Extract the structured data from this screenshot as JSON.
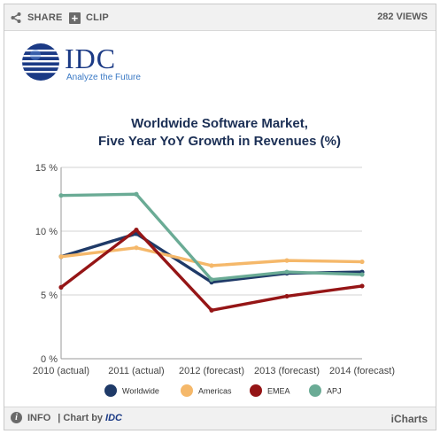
{
  "toolbar": {
    "share_label": "SHARE",
    "clip_label": "CLIP",
    "views_count": "282",
    "views_label": "VIEWS"
  },
  "logo": {
    "name": "IDC",
    "tagline": "Analyze the Future"
  },
  "footer": {
    "info_label": "INFO",
    "chart_by_label": "| Chart by",
    "chart_by_brand": "IDC",
    "brand": "iCharts"
  },
  "colors": {
    "Worldwide": "#1f3a68",
    "Americas": "#f5b86a",
    "EMEA": "#951516",
    "APJ": "#6aab95"
  },
  "chart_data": {
    "type": "line",
    "title": "Worldwide Software Market,",
    "subtitle": "Five Year YoY Growth in Revenues  (%)",
    "xlabel": "",
    "ylabel": "",
    "categories": [
      "2010 (actual)",
      "2011 (actual)",
      "2012 (forecast)",
      "2013 (forecast)",
      "2014 (forecast)"
    ],
    "ylim": [
      0,
      15
    ],
    "yticks": [
      {
        "value": 0,
        "label": "0 %"
      },
      {
        "value": 5,
        "label": "5 %"
      },
      {
        "value": 10,
        "label": "10 %"
      },
      {
        "value": 15,
        "label": "15 %"
      }
    ],
    "grid": true,
    "legend_position": "bottom",
    "series": [
      {
        "name": "Worldwide",
        "values": [
          8.0,
          9.8,
          6.0,
          6.7,
          6.8
        ]
      },
      {
        "name": "Americas",
        "values": [
          8.0,
          8.7,
          7.3,
          7.7,
          7.6
        ]
      },
      {
        "name": "EMEA",
        "values": [
          5.6,
          10.1,
          3.8,
          4.9,
          5.7
        ]
      },
      {
        "name": "APJ",
        "values": [
          12.8,
          12.9,
          6.2,
          6.8,
          6.6
        ]
      }
    ]
  }
}
